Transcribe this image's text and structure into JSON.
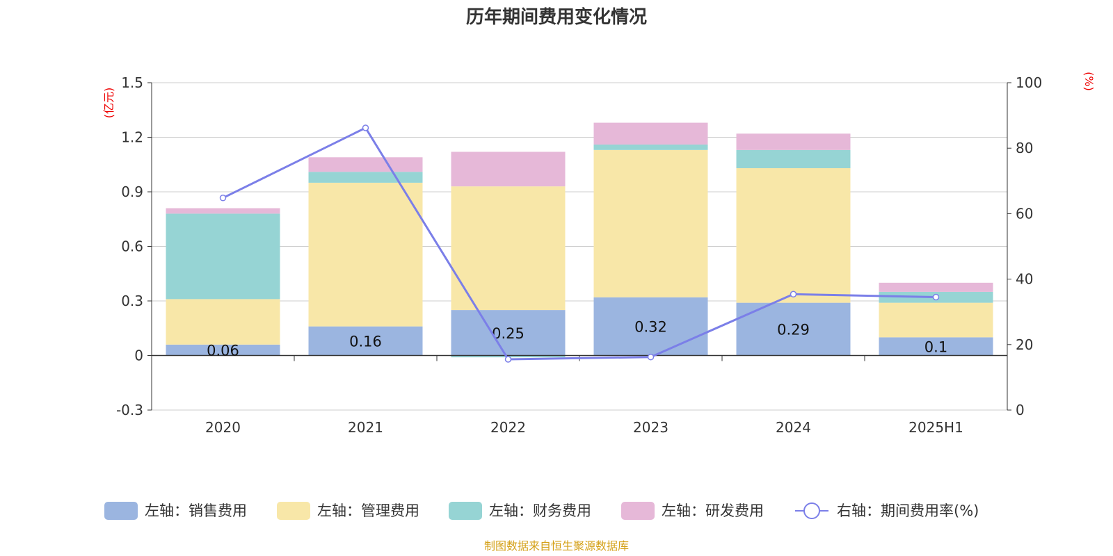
{
  "chart_data": {
    "type": "bar",
    "title": "历年期间费用变化情况",
    "categories": [
      "2020",
      "2021",
      "2022",
      "2023",
      "2024",
      "2025H1"
    ],
    "left_axis": {
      "unit": "(亿元)",
      "ylim": [
        -0.3,
        1.5
      ],
      "ticks": [
        -0.3,
        0,
        0.3,
        0.6,
        0.9,
        1.2,
        1.5
      ],
      "tick_labels": [
        "-0.3",
        "0",
        "0.3",
        "0.6",
        "0.9",
        "1.2",
        "1.5"
      ]
    },
    "right_axis": {
      "unit": "(%)",
      "ylim": [
        0,
        100
      ],
      "ticks": [
        0,
        20,
        40,
        60,
        80,
        100
      ],
      "tick_labels": [
        "0",
        "20",
        "40",
        "60",
        "80",
        "100"
      ]
    },
    "series": [
      {
        "name": "左轴：销售费用",
        "axis": "left",
        "kind": "bar",
        "color": "#9bb5e0",
        "values": [
          0.06,
          0.16,
          0.25,
          0.32,
          0.29,
          0.1
        ],
        "labels": [
          "0.06",
          "0.16",
          "0.25",
          "0.32",
          "0.29",
          "0.1"
        ]
      },
      {
        "name": "左轴：管理费用",
        "axis": "left",
        "kind": "bar",
        "color": "#f8e7a8",
        "values": [
          0.25,
          0.79,
          0.68,
          0.81,
          0.74,
          0.19
        ]
      },
      {
        "name": "左轴：财务费用",
        "axis": "left",
        "kind": "bar",
        "color": "#96d4d4",
        "values": [
          0.47,
          0.06,
          -0.01,
          0.03,
          0.1,
          0.06
        ]
      },
      {
        "name": "左轴：研发费用",
        "axis": "left",
        "kind": "bar",
        "color": "#e6b8d8",
        "values": [
          0.03,
          0.08,
          0.19,
          0.12,
          0.09,
          0.05
        ]
      },
      {
        "name": "右轴：期间费用率(%)",
        "axis": "right",
        "kind": "line",
        "color": "#7b7fe8",
        "values": [
          64.8,
          86.2,
          15.5,
          16.2,
          35.4,
          34.5
        ]
      }
    ],
    "grid": true,
    "legend": "bottom",
    "source": "制图数据来自恒生聚源数据库"
  }
}
